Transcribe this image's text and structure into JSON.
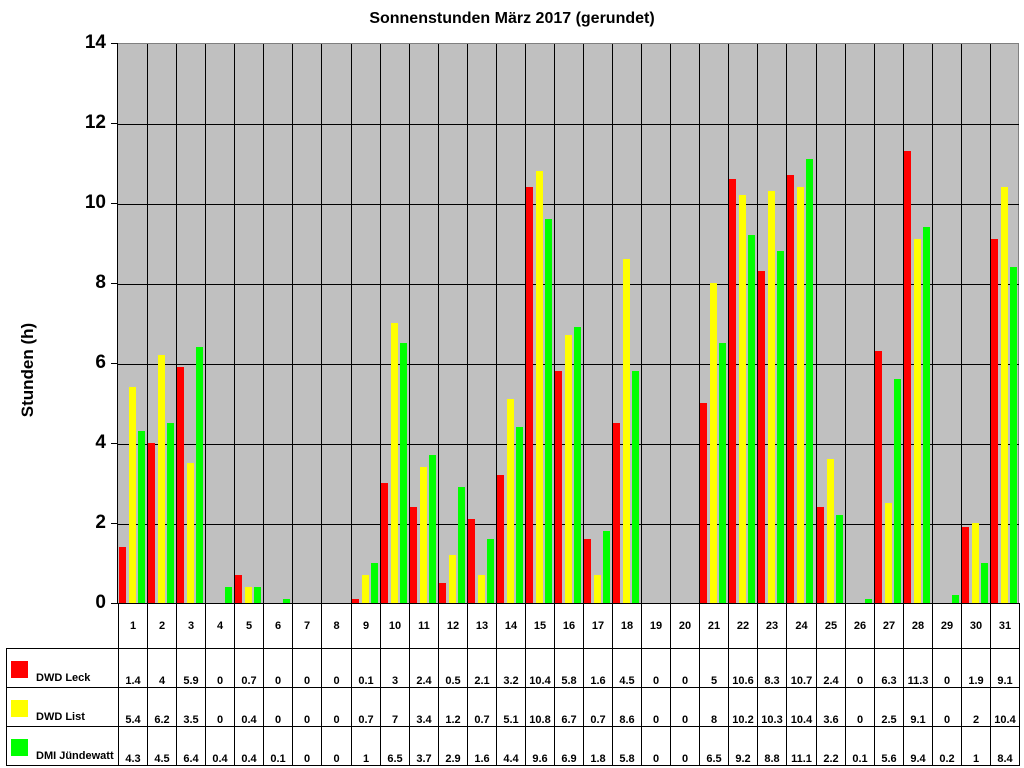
{
  "chart_data": {
    "type": "bar",
    "title": "Sonnenstunden März 2017 (gerundet)",
    "xlabel": "",
    "ylabel": "Stunden (h)",
    "ylim": [
      0,
      14
    ],
    "yticks": [
      0,
      2,
      4,
      6,
      8,
      10,
      12,
      14
    ],
    "grid": true,
    "legend_position": "table-left",
    "categories": [
      "1",
      "2",
      "3",
      "4",
      "5",
      "6",
      "7",
      "8",
      "9",
      "10",
      "11",
      "12",
      "13",
      "14",
      "15",
      "16",
      "17",
      "18",
      "19",
      "20",
      "21",
      "22",
      "23",
      "24",
      "25",
      "26",
      "27",
      "28",
      "29",
      "30",
      "31"
    ],
    "series": [
      {
        "name": "DWD Leck",
        "color": "#ff0000",
        "values": [
          1.4,
          4,
          5.9,
          0,
          0.7,
          0,
          0,
          0,
          0.1,
          3,
          2.4,
          0.5,
          2.1,
          3.2,
          10.4,
          5.8,
          1.6,
          4.5,
          0,
          0,
          5,
          10.6,
          8.3,
          10.7,
          2.4,
          0,
          6.3,
          11.3,
          0,
          1.9,
          9.1
        ]
      },
      {
        "name": "DWD List",
        "color": "#ffff00",
        "values": [
          5.4,
          6.2,
          3.5,
          0,
          0.4,
          0,
          0,
          0,
          0.7,
          7,
          3.4,
          1.2,
          0.7,
          5.1,
          10.8,
          6.7,
          0.7,
          8.6,
          0,
          0,
          8,
          10.2,
          10.3,
          10.4,
          3.6,
          0,
          2.5,
          9.1,
          0,
          2,
          10.4
        ]
      },
      {
        "name": "DMI Jündewatt",
        "color": "#00ff00",
        "values": [
          4.3,
          4.5,
          6.4,
          0.4,
          0.4,
          0.1,
          0,
          0,
          1,
          6.5,
          3.7,
          2.9,
          1.6,
          4.4,
          9.6,
          6.9,
          1.8,
          5.8,
          0,
          0,
          6.5,
          9.2,
          8.8,
          11.1,
          2.2,
          0.1,
          5.6,
          9.4,
          0.2,
          1,
          8.4
        ]
      }
    ]
  },
  "colors": {
    "plot_bg": "#c0c0c0",
    "grid": "#000000"
  }
}
